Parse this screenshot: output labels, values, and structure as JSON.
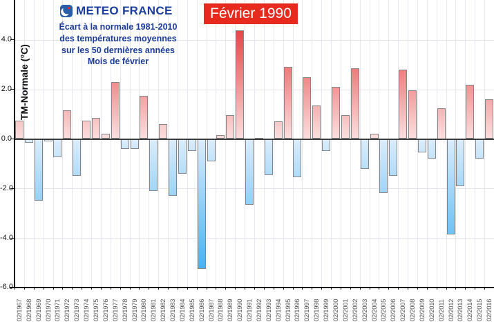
{
  "header": {
    "logo_text": "METEO FRANCE",
    "subtitle_lines": [
      "Écart à la normale 1981-2010",
      "des températures moyennes",
      "sur les 50 dernières années",
      "Mois de février"
    ]
  },
  "annotation": {
    "label": "Février 1990"
  },
  "y_axis": {
    "title": "TM-Normale (°C)",
    "tick_labels": [
      "4.0",
      "2.0",
      "0.0",
      "-2.0",
      "-4.0",
      "-6.0"
    ]
  },
  "chart_data": {
    "type": "bar",
    "title": "Écart à la normale 1981-2010 des températures moyennes sur les 50 dernières années — Mois de février",
    "xlabel": "",
    "ylabel": "TM-Normale (°C)",
    "ylim": [
      -6.0,
      5.6
    ],
    "yticks": [
      4.0,
      2.0,
      0.0,
      -2.0,
      -4.0,
      -6.0
    ],
    "grid": true,
    "legend": "none",
    "annotation": "Février 1990",
    "annotated_category": "02/1990",
    "categories": [
      "02/1967",
      "02/1968",
      "02/1969",
      "02/1970",
      "02/1971",
      "02/1972",
      "02/1973",
      "02/1974",
      "02/1975",
      "02/1976",
      "02/1977",
      "02/1978",
      "02/1979",
      "02/1980",
      "02/1981",
      "02/1982",
      "02/1983",
      "02/1984",
      "02/1985",
      "02/1986",
      "02/1987",
      "02/1988",
      "02/1989",
      "02/1990",
      "02/1991",
      "02/1992",
      "02/1993",
      "02/1994",
      "02/1995",
      "02/1996",
      "02/1997",
      "02/1998",
      "02/1999",
      "02/2000",
      "02/2001",
      "02/2002",
      "02/2003",
      "02/2004",
      "02/2005",
      "02/2006",
      "02/2007",
      "02/2008",
      "02/2009",
      "02/2010",
      "02/2011",
      "02/2012",
      "02/2013",
      "02/2014",
      "02/2015",
      "02/2016"
    ],
    "values": [
      0.75,
      -0.15,
      -2.5,
      -0.1,
      -0.75,
      1.15,
      -1.5,
      0.75,
      0.85,
      0.2,
      2.3,
      -0.4,
      -0.4,
      1.75,
      -2.1,
      0.6,
      -2.3,
      -1.4,
      -0.5,
      -5.25,
      -0.9,
      0.15,
      0.95,
      4.4,
      -2.65,
      0.05,
      -1.45,
      0.7,
      2.9,
      -1.55,
      2.5,
      1.35,
      -0.5,
      2.1,
      0.95,
      2.85,
      -1.2,
      0.2,
      -2.2,
      -1.5,
      2.8,
      1.95,
      -0.55,
      -0.8,
      1.25,
      -3.85,
      -1.9,
      2.2,
      -0.8,
      1.6
    ],
    "colors": {
      "positive_dark": "#e64545",
      "positive_light": "#fbdede",
      "negative_dark": "#45b2f2",
      "negative_light": "#daecfb",
      "bar_border": "#858585",
      "zero_line": "#3a3a3a",
      "gridline": "#e7e7ef",
      "axis": "#111111",
      "title_blue": "#1a3a96",
      "annotation_bg": "#e62a1e",
      "annotation_fg": "#ffffff"
    }
  }
}
